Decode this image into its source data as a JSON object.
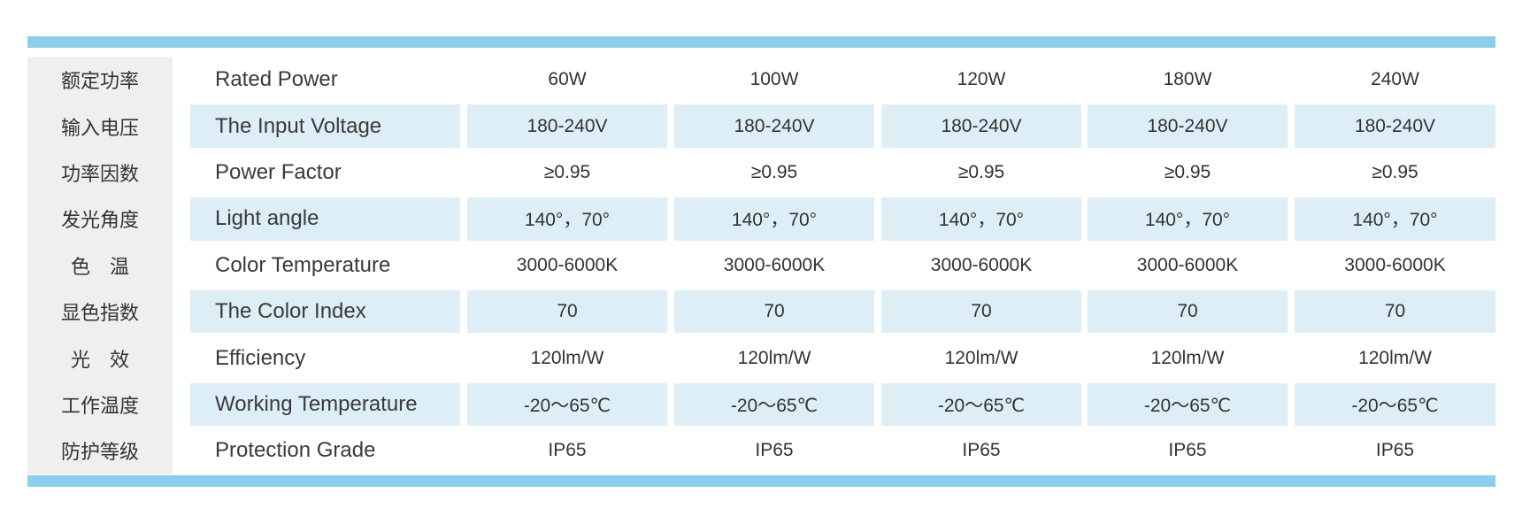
{
  "table": {
    "rows": [
      [
        "额定功率",
        "Rated Power",
        "60W",
        "100W",
        "120W",
        "180W",
        "240W"
      ],
      [
        "输入电压",
        "The Input Voltage",
        "180-240V",
        "180-240V",
        "180-240V",
        "180-240V",
        "180-240V"
      ],
      [
        "功率因数",
        "Power Factor",
        "≥0.95",
        "≥0.95",
        "≥0.95",
        "≥0.95",
        "≥0.95"
      ],
      [
        "发光角度",
        "Light angle",
        "140°，70°",
        "140°，70°",
        "140°，70°",
        "140°，70°",
        "140°，70°"
      ],
      [
        "色　温",
        "Color Temperature",
        "3000-6000K",
        "3000-6000K",
        "3000-6000K",
        "3000-6000K",
        "3000-6000K"
      ],
      [
        "显色指数",
        "The Color Index",
        "70",
        "70",
        "70",
        "70",
        "70"
      ],
      [
        "光　效",
        "Efficiency",
        "120lm/W",
        "120lm/W",
        "120lm/W",
        "120lm/W",
        "120lm/W"
      ],
      [
        "工作温度",
        "Working Temperature",
        "-20～65℃",
        "-20～65℃",
        "-20～65℃",
        "-20～65℃",
        "-20～65℃"
      ],
      [
        "防护等级",
        "Protection Grade",
        "IP65",
        "IP65",
        "IP65",
        "IP65",
        "IP65"
      ]
    ]
  }
}
